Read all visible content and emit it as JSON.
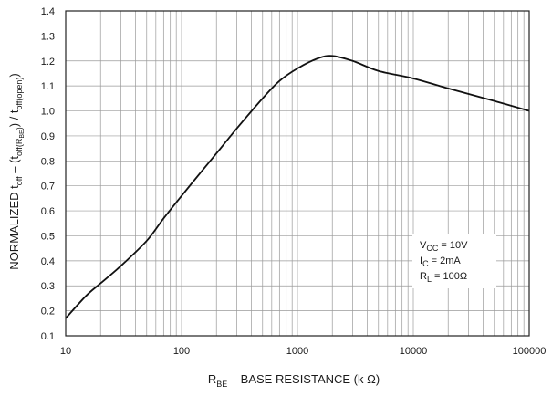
{
  "chart_data": {
    "type": "line",
    "x_scale": "log",
    "xlim": [
      10,
      100000
    ],
    "ylim": [
      0.1,
      1.4
    ],
    "x_ticks": [
      10,
      100,
      1000,
      10000,
      100000
    ],
    "x_tick_labels": [
      "10",
      "100",
      "1000",
      "10000",
      "100000"
    ],
    "y_ticks": [
      0.1,
      0.2,
      0.3,
      0.4,
      0.5,
      0.6,
      0.7,
      0.8,
      0.9,
      1.0,
      1.1,
      1.2,
      1.3,
      1.4
    ],
    "y_tick_labels": [
      "0.1",
      "0.2",
      "0.3",
      "0.4",
      "0.5",
      "0.6",
      "0.7",
      "0.8",
      "0.9",
      "1.0",
      "1.1",
      "1.2",
      "1.3",
      "1.4"
    ],
    "grid": true,
    "xlabel": {
      "main": "R",
      "main_sub": "BE",
      "rest": " – BASE RESISTANCE (k Ω)"
    },
    "ylabel": {
      "p1": "NORMALIZED t",
      "p1_sub": "off",
      "p2": " – (t",
      "p2_sub": "off(R",
      "p2_subsub": "BE",
      "p3_sub": ")",
      "p4": ") / t",
      "p4_sub": "off(open)",
      "p5": ")"
    },
    "annotation": {
      "line1_main": "V",
      "line1_sub": "CC",
      "line1_rest": " = 10V",
      "line2_main": "I",
      "line2_sub": "C",
      "line2_rest": " = 2mA",
      "line3_main": "R",
      "line3_sub": "L",
      "line3_rest": " = 100Ω"
    },
    "series": [
      {
        "x": [
          10,
          15,
          20,
          30,
          50,
          70,
          100,
          150,
          200,
          300,
          500,
          700,
          1000,
          1500,
          2000,
          3000,
          5000,
          10000,
          20000,
          50000,
          100000
        ],
        "y": [
          0.17,
          0.26,
          0.31,
          0.38,
          0.48,
          0.57,
          0.66,
          0.76,
          0.83,
          0.93,
          1.05,
          1.12,
          1.17,
          1.21,
          1.22,
          1.2,
          1.16,
          1.13,
          1.09,
          1.04,
          1.0
        ]
      }
    ],
    "colors": {
      "line": "#111111",
      "grid": "#9a9a9a",
      "frame": "#222222"
    }
  }
}
